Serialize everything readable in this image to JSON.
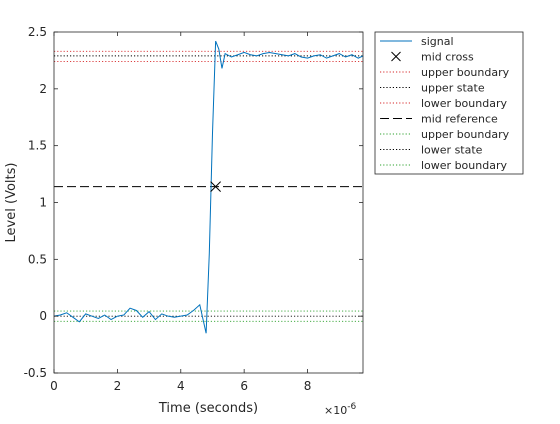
{
  "chart_data": {
    "type": "line",
    "xlabel": "Time (seconds)",
    "ylabel": "Level (Volts)",
    "x_exponent_label": "×10",
    "x_exponent_value": "-6",
    "xlim": [
      0,
      9.75
    ],
    "ylim": [
      -0.5,
      2.5
    ],
    "x_unit_scale": 1e-06,
    "x_ticks": [
      0,
      2,
      4,
      6,
      8
    ],
    "x_tick_labels": [
      "0",
      "2",
      "4",
      "6",
      "8"
    ],
    "y_ticks": [
      -0.5,
      0,
      0.5,
      1,
      1.5,
      2,
      2.5
    ],
    "y_tick_labels": [
      "-0.5",
      "0",
      "0.5",
      "1",
      "1.5",
      "2",
      "2.5"
    ],
    "grid": false,
    "legend_position": "outside-top-right",
    "signal": {
      "name": "signal",
      "color": "#0072BD",
      "x": [
        0,
        0.2,
        0.4,
        0.6,
        0.8,
        1.0,
        1.2,
        1.4,
        1.6,
        1.8,
        2.0,
        2.2,
        2.4,
        2.6,
        2.8,
        3.0,
        3.2,
        3.4,
        3.6,
        3.8,
        4.0,
        4.2,
        4.4,
        4.6,
        4.8,
        4.9,
        5.0,
        5.1,
        5.2,
        5.3,
        5.4,
        5.6,
        5.8,
        6.0,
        6.2,
        6.4,
        6.6,
        6.8,
        7.0,
        7.2,
        7.4,
        7.6,
        7.8,
        8.0,
        8.2,
        8.4,
        8.6,
        8.8,
        9.0,
        9.2,
        9.4,
        9.6,
        9.75
      ],
      "y": [
        0.0,
        0.01,
        0.03,
        -0.01,
        -0.05,
        0.02,
        0.0,
        -0.02,
        0.01,
        -0.03,
        0.0,
        0.01,
        0.07,
        0.05,
        -0.01,
        0.04,
        -0.03,
        0.02,
        0.0,
        -0.01,
        0.0,
        0.01,
        0.05,
        0.1,
        -0.15,
        0.55,
        1.6,
        2.42,
        2.35,
        2.18,
        2.31,
        2.28,
        2.3,
        2.32,
        2.3,
        2.29,
        2.31,
        2.32,
        2.31,
        2.3,
        2.29,
        2.31,
        2.28,
        2.27,
        2.29,
        2.3,
        2.27,
        2.29,
        2.31,
        2.28,
        2.3,
        2.27,
        2.29
      ]
    },
    "mid_cross": {
      "name": "mid cross",
      "x": 5.1,
      "y": 1.14,
      "color": "#000000"
    },
    "reference_lines": [
      {
        "name": "upper boundary",
        "y": 2.33,
        "color": "#D62728",
        "dash": "dotted"
      },
      {
        "name": "upper state",
        "y": 2.29,
        "color": "#000000",
        "dash": "dotted"
      },
      {
        "name": "lower boundary",
        "y": 2.24,
        "color": "#D62728",
        "dash": "dotted"
      },
      {
        "name": "mid reference",
        "y": 1.14,
        "color": "#000000",
        "dash": "dashed"
      },
      {
        "name": "upper boundary",
        "y": 0.045,
        "color": "#2CA02C",
        "dash": "dotted"
      },
      {
        "name": "lower state",
        "y": 0.0,
        "color": "#000000",
        "dash": "dotted"
      },
      {
        "name": "lower boundary",
        "y": -0.045,
        "color": "#2CA02C",
        "dash": "dotted"
      }
    ],
    "legend": [
      {
        "label": "signal",
        "kind": "line",
        "color": "#0072BD"
      },
      {
        "label": "mid cross",
        "kind": "marker",
        "color": "#000000"
      },
      {
        "label": "upper boundary",
        "kind": "dotted",
        "color": "#D62728"
      },
      {
        "label": "upper state",
        "kind": "dotted",
        "color": "#000000"
      },
      {
        "label": "lower boundary",
        "kind": "dotted",
        "color": "#D62728"
      },
      {
        "label": "mid reference",
        "kind": "dashed",
        "color": "#000000"
      },
      {
        "label": "upper boundary",
        "kind": "dotted",
        "color": "#2CA02C"
      },
      {
        "label": "lower state",
        "kind": "dotted",
        "color": "#000000"
      },
      {
        "label": "lower boundary",
        "kind": "dotted",
        "color": "#2CA02C"
      }
    ]
  }
}
